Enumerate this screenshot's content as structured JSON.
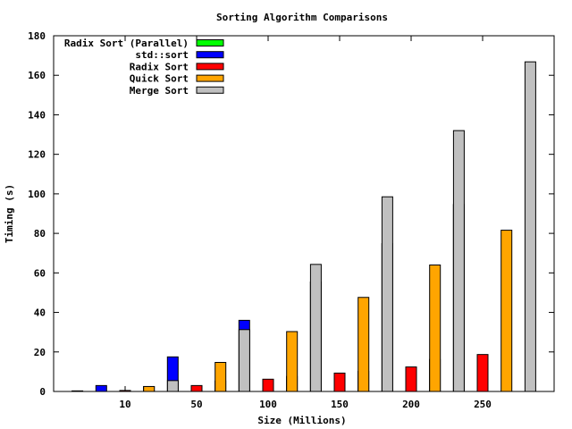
{
  "chart_data": {
    "type": "bar",
    "title": "Sorting Algorithm Comparisons",
    "xlabel": "Size (Millions)",
    "ylabel": "Timing (s)",
    "ylim": [
      0,
      180
    ],
    "yticks": [
      0,
      20,
      40,
      60,
      80,
      100,
      120,
      140,
      160,
      180
    ],
    "categories": [
      "10",
      "50",
      "100",
      "150",
      "200",
      "250"
    ],
    "legend_position": "top-left",
    "grid": false,
    "series": [
      {
        "name": "Radix Sort (Parallel)",
        "color": "#00ff00",
        "values": [
          0.3,
          2.5,
          5.3,
          7.6,
          10.2,
          16.2
        ]
      },
      {
        "name": "std::sort",
        "color": "#0000ff",
        "values": [
          3.0,
          17.5,
          36.0,
          55.4,
          74.8,
          94.6
        ]
      },
      {
        "name": "Radix Sort",
        "color": "#ff0000",
        "values": [
          0.5,
          3.0,
          6.2,
          9.3,
          12.4,
          18.7
        ]
      },
      {
        "name": "Quick Sort",
        "color": "#ffa500",
        "values": [
          2.5,
          14.7,
          30.3,
          47.6,
          64.0,
          81.6
        ]
      },
      {
        "name": "Merge Sort",
        "color": "#c0c0c0",
        "values": [
          5.5,
          31.3,
          64.3,
          98.5,
          132.0,
          166.8
        ]
      }
    ]
  }
}
